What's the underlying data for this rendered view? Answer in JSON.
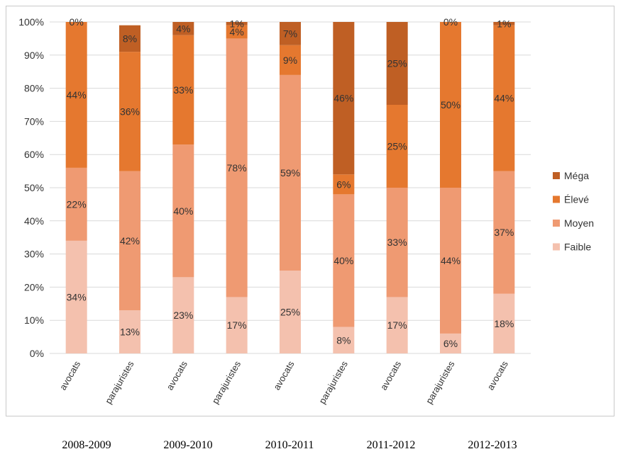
{
  "chart_data": {
    "type": "bar",
    "stacked": true,
    "percent": true,
    "categories": [
      "avocats",
      "parajuristes",
      "avocats",
      "parajuristes",
      "avocats",
      "parajuristes",
      "avocats",
      "parajuristes",
      "avocats"
    ],
    "groups": [
      "2008-2009",
      "2009-2010",
      "2010-2011",
      "2011-2012",
      "2012-2013"
    ],
    "ylim": [
      0,
      100
    ],
    "yticks": [
      "0%",
      "10%",
      "20%",
      "30%",
      "40%",
      "50%",
      "60%",
      "70%",
      "80%",
      "90%",
      "100%"
    ],
    "grid": true,
    "legend_position": "right",
    "series": [
      {
        "name": "Faible",
        "color": "#f4c1ae",
        "values": [
          34,
          13,
          23,
          17,
          25,
          8,
          17,
          6,
          18
        ],
        "labels": [
          "34%",
          "13%",
          "23%",
          "17%",
          "25%",
          "8%",
          "17%",
          "6%",
          "18%"
        ]
      },
      {
        "name": "Moyen",
        "color": "#ef9a72",
        "values": [
          22,
          42,
          40,
          78,
          59,
          40,
          33,
          44,
          37
        ],
        "labels": [
          "22%",
          "42%",
          "40%",
          "78%",
          "59%",
          "40%",
          "33%",
          "44%",
          "37%"
        ]
      },
      {
        "name": "Élevé",
        "color": "#e5782f",
        "values": [
          44,
          36,
          33,
          4,
          9,
          6,
          25,
          50,
          44
        ],
        "labels": [
          "44%",
          "36%",
          "33%",
          "4%",
          "9%",
          "6%",
          "25%",
          "50%",
          "44%"
        ]
      },
      {
        "name": "Méga",
        "color": "#bf5f24",
        "values": [
          0,
          8,
          4,
          1,
          7,
          46,
          25,
          0,
          1
        ],
        "labels": [
          "0%",
          "8%",
          "4%",
          "1%",
          "7%",
          "46%",
          "25%",
          "0%",
          "1%"
        ]
      }
    ]
  }
}
